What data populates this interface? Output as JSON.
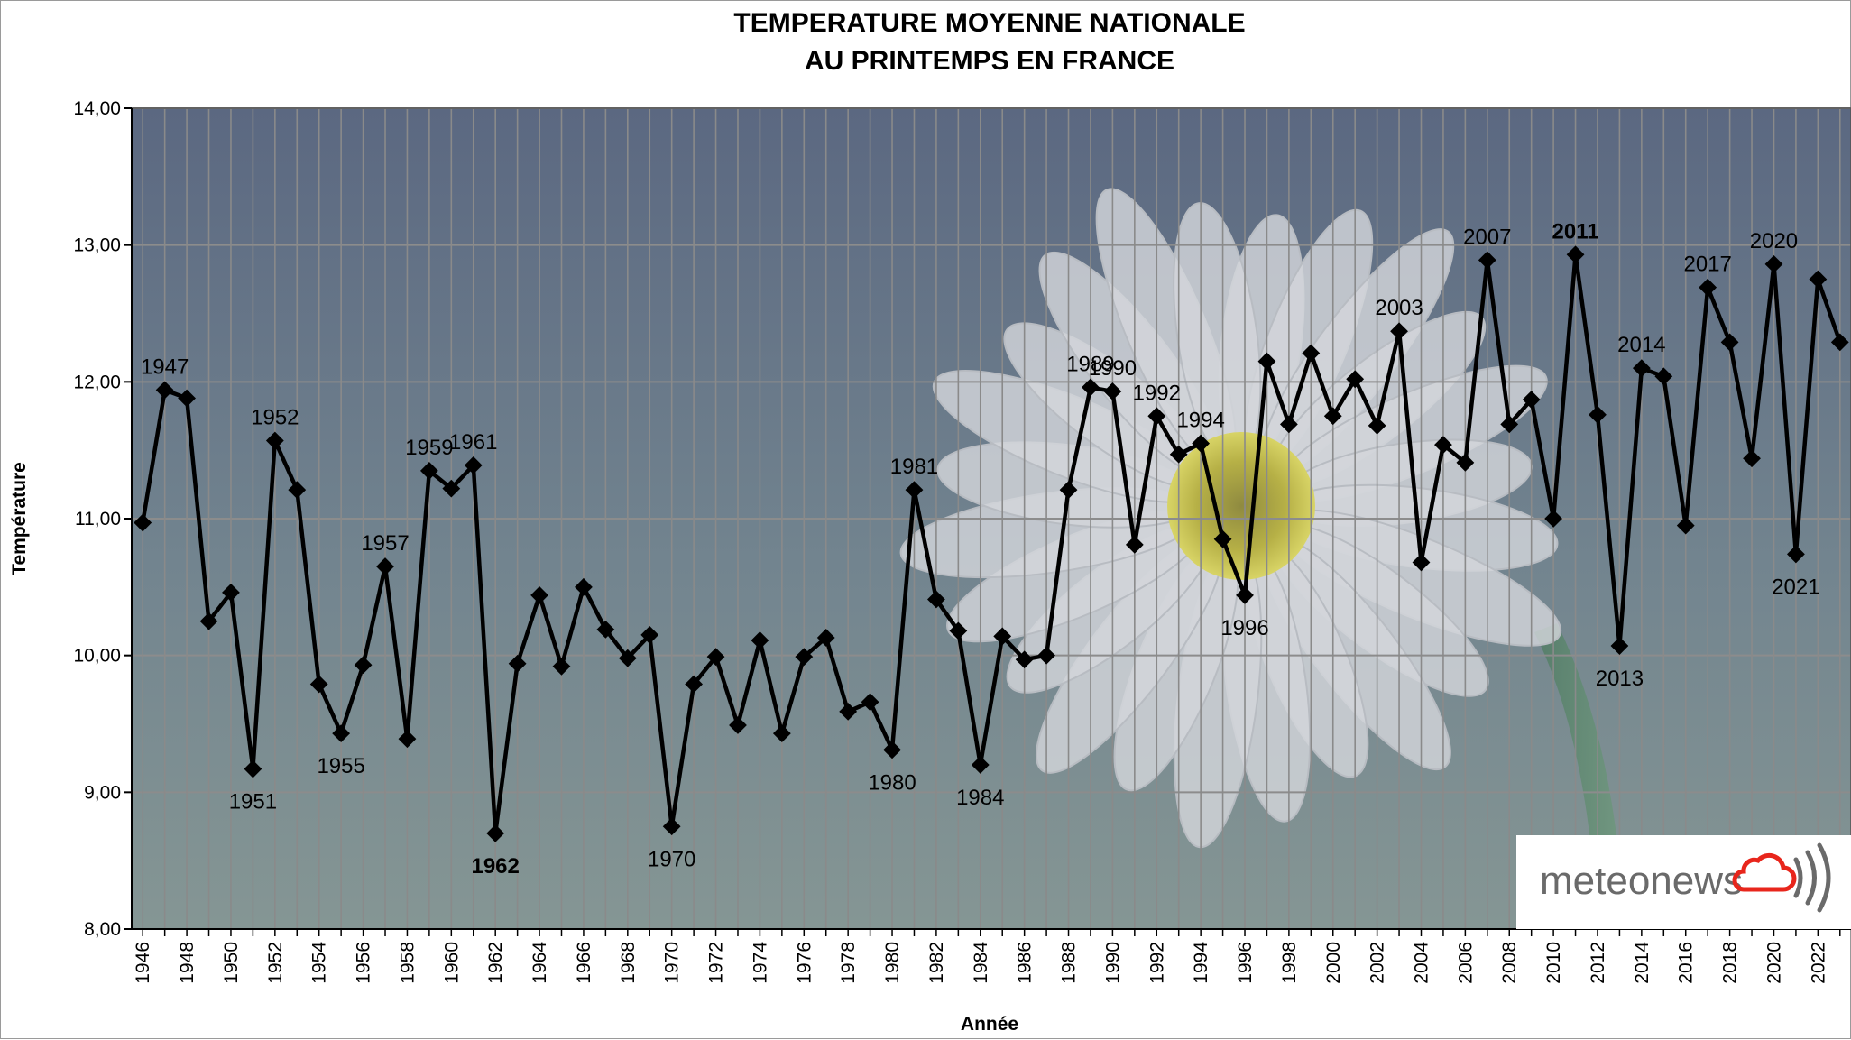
{
  "chart_data": {
    "type": "line",
    "title_lines": [
      "TEMPERATURE MOYENNE NATIONALE",
      "AU PRINTEMPS EN FRANCE"
    ],
    "xlabel": "Année",
    "ylabel": "Température",
    "ylim": [
      8,
      14
    ],
    "xlim": [
      1946,
      2023
    ],
    "yticks": [
      "8,00",
      "9,00",
      "10,00",
      "11,00",
      "12,00",
      "13,00",
      "14,00"
    ],
    "xticks": [
      "1946",
      "1948",
      "1950",
      "1952",
      "1954",
      "1956",
      "1958",
      "1960",
      "1962",
      "1964",
      "1966",
      "1968",
      "1970",
      "1972",
      "1974",
      "1976",
      "1978",
      "1980",
      "1982",
      "1984",
      "1986",
      "1988",
      "1990",
      "1992",
      "1994",
      "1996",
      "1998",
      "2000",
      "2002",
      "2004",
      "2006",
      "2008",
      "2010",
      "2012",
      "2014",
      "2016",
      "2018",
      "2020",
      "2022"
    ],
    "grid": true,
    "legend": "none",
    "series": [
      {
        "color": "#000000",
        "x": [
          1946,
          1947,
          1948,
          1949,
          1950,
          1951,
          1952,
          1953,
          1954,
          1955,
          1956,
          1957,
          1958,
          1959,
          1960,
          1961,
          1962,
          1963,
          1964,
          1965,
          1966,
          1967,
          1968,
          1969,
          1970,
          1971,
          1972,
          1973,
          1974,
          1975,
          1976,
          1977,
          1978,
          1979,
          1980,
          1981,
          1982,
          1983,
          1984,
          1985,
          1986,
          1987,
          1988,
          1989,
          1990,
          1991,
          1992,
          1993,
          1994,
          1995,
          1996,
          1997,
          1998,
          1999,
          2000,
          2001,
          2002,
          2003,
          2004,
          2005,
          2006,
          2007,
          2008,
          2009,
          2010,
          2011,
          2012,
          2013,
          2014,
          2015,
          2016,
          2017,
          2018,
          2019,
          2020,
          2021,
          2022,
          2023
        ],
        "y": [
          10.97,
          11.94,
          11.88,
          10.25,
          10.46,
          9.17,
          11.57,
          11.21,
          9.79,
          9.43,
          9.93,
          10.65,
          9.39,
          11.35,
          11.22,
          11.39,
          8.7,
          9.94,
          10.44,
          9.92,
          10.5,
          10.19,
          9.98,
          10.15,
          8.75,
          9.79,
          9.99,
          9.49,
          10.11,
          9.43,
          9.99,
          10.13,
          9.59,
          9.66,
          9.31,
          11.21,
          10.41,
          10.18,
          9.2,
          10.14,
          9.97,
          10.0,
          11.21,
          11.96,
          11.93,
          10.81,
          11.75,
          11.47,
          11.55,
          10.85,
          10.44,
          12.15,
          11.69,
          12.21,
          11.75,
          12.02,
          11.68,
          12.37,
          10.68,
          11.54,
          11.41,
          12.89,
          11.69,
          11.87,
          11.0,
          12.93,
          11.76,
          10.07,
          12.1,
          12.04,
          10.95,
          12.69,
          12.29,
          11.44,
          12.86,
          10.74,
          12.75,
          12.29
        ]
      }
    ],
    "annotations": [
      {
        "year": 1947,
        "text": "1947",
        "pos": "above"
      },
      {
        "year": 1951,
        "text": "1951",
        "pos": "below"
      },
      {
        "year": 1952,
        "text": "1952",
        "pos": "above"
      },
      {
        "year": 1955,
        "text": "1955",
        "pos": "below"
      },
      {
        "year": 1957,
        "text": "1957",
        "pos": "above"
      },
      {
        "year": 1959,
        "text": "1959",
        "pos": "above"
      },
      {
        "year": 1961,
        "text": "1961",
        "pos": "above"
      },
      {
        "year": 1962,
        "text": "1962",
        "pos": "below",
        "color": "#1010e0",
        "bold": true
      },
      {
        "year": 1970,
        "text": "1970",
        "pos": "below"
      },
      {
        "year": 1980,
        "text": "1980",
        "pos": "below"
      },
      {
        "year": 1981,
        "text": "1981",
        "pos": "above"
      },
      {
        "year": 1984,
        "text": "1984",
        "pos": "below"
      },
      {
        "year": 1989,
        "text": "1989",
        "pos": "above"
      },
      {
        "year": 1990,
        "text": "1990",
        "pos": "above"
      },
      {
        "year": 1992,
        "text": "1992",
        "pos": "above"
      },
      {
        "year": 1994,
        "text": "1994",
        "pos": "above"
      },
      {
        "year": 1996,
        "text": "1996",
        "pos": "below"
      },
      {
        "year": 2003,
        "text": "2003",
        "pos": "above"
      },
      {
        "year": 2007,
        "text": "2007",
        "pos": "above"
      },
      {
        "year": 2011,
        "text": "2011",
        "pos": "above",
        "color": "#e8261c",
        "bold": true
      },
      {
        "year": 2013,
        "text": "2013",
        "pos": "below"
      },
      {
        "year": 2014,
        "text": "2014",
        "pos": "above"
      },
      {
        "year": 2017,
        "text": "2017",
        "pos": "above"
      },
      {
        "year": 2020,
        "text": "2020",
        "pos": "above"
      },
      {
        "year": 2021,
        "text": "2021",
        "pos": "below"
      }
    ]
  },
  "logo": {
    "text": "meteonews",
    "cloud_color": "#e8261c"
  },
  "colors": {
    "plot_bg_top": "#5c6a82",
    "plot_bg_bottom": "#7f9294",
    "grid": "#8a8a8a",
    "line": "#000000"
  }
}
